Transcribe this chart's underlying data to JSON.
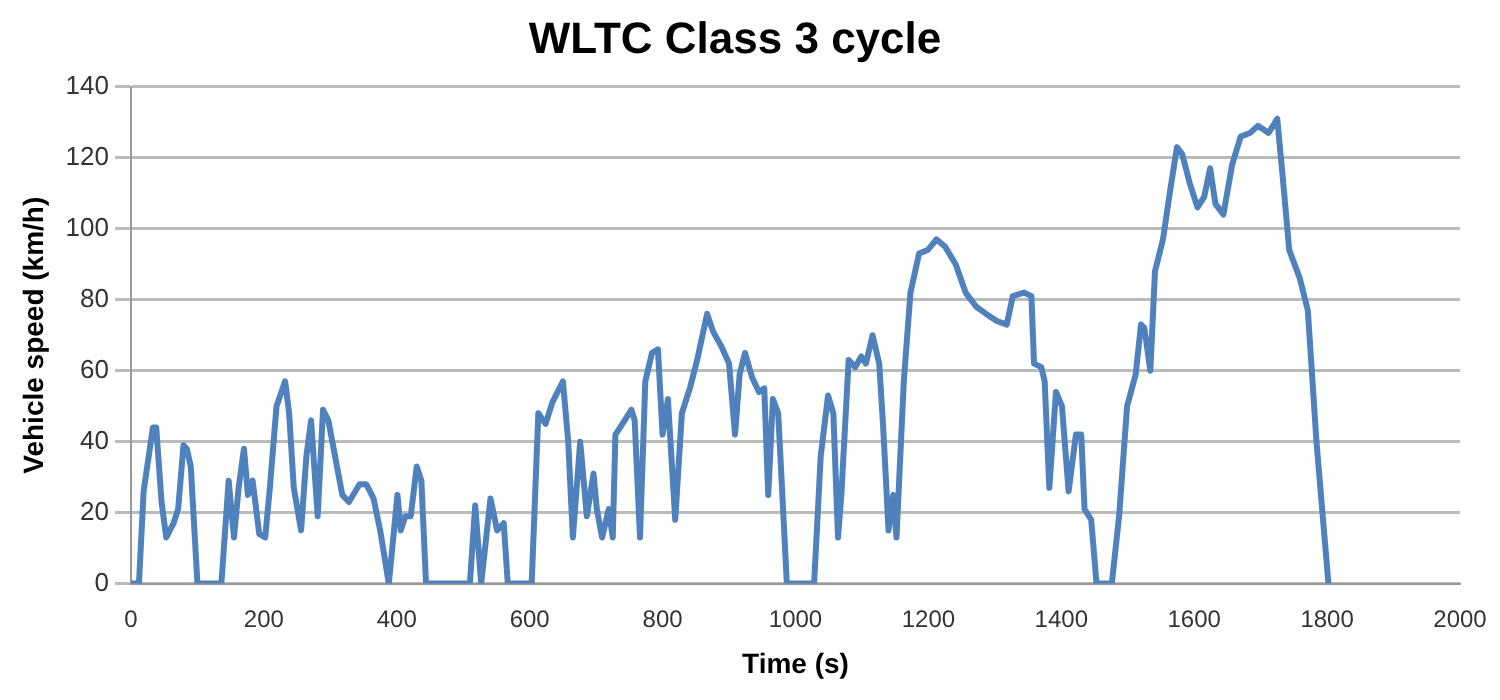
{
  "chart_data": {
    "type": "line",
    "title": "WLTC Class 3 cycle",
    "xlabel": "Time (s)",
    "ylabel": "Vehicle speed (km/h)",
    "x": [
      0,
      12,
      19,
      33,
      38,
      46,
      53,
      64,
      71,
      79,
      84,
      90,
      100,
      136,
      147,
      155,
      162,
      170,
      176,
      183,
      193,
      202,
      209,
      219,
      232,
      238,
      245,
      256,
      264,
      271,
      281,
      289,
      297,
      307,
      318,
      328,
      344,
      354,
      365,
      375,
      388,
      401,
      406,
      413,
      421,
      430,
      437,
      444,
      510,
      518,
      527,
      541,
      551,
      561,
      567,
      603,
      613,
      624,
      634,
      650,
      658,
      665,
      676,
      686,
      696,
      701,
      709,
      719,
      725,
      729,
      743,
      753,
      758,
      766,
      774,
      784,
      793,
      800,
      808,
      819,
      829,
      841,
      852,
      867,
      876,
      888,
      900,
      909,
      916,
      924,
      935,
      945,
      953,
      959,
      966,
      974,
      987,
      1028,
      1038,
      1049,
      1057,
      1064,
      1069,
      1080,
      1090,
      1099,
      1106,
      1116,
      1126,
      1132,
      1140,
      1147,
      1152,
      1163,
      1173,
      1186,
      1199,
      1212,
      1225,
      1241,
      1256,
      1272,
      1287,
      1303,
      1318,
      1327,
      1344,
      1355,
      1359,
      1370,
      1375,
      1382,
      1392,
      1401,
      1411,
      1422,
      1430,
      1435,
      1445,
      1453,
      1476,
      1487,
      1499,
      1512,
      1520,
      1525,
      1534,
      1541,
      1553,
      1564,
      1574,
      1582,
      1593,
      1605,
      1615,
      1624,
      1632,
      1644,
      1657,
      1670,
      1684,
      1696,
      1712,
      1725,
      1733,
      1743,
      1759,
      1771,
      1784,
      1802
    ],
    "series": [
      {
        "color": "#4f81bd",
        "values": [
          0,
          0,
          26,
          44,
          44,
          23,
          13,
          17,
          21,
          39,
          38,
          33,
          0,
          0,
          29,
          13,
          27,
          38,
          25,
          29,
          14,
          13,
          27,
          50,
          57,
          48,
          27,
          15,
          36,
          46,
          19,
          49,
          46,
          36,
          25,
          23,
          28,
          28,
          24,
          15,
          0,
          25,
          15,
          19,
          19,
          33,
          29,
          0,
          0,
          22,
          0,
          24,
          15,
          17,
          0,
          0,
          48,
          45,
          51,
          57,
          40,
          13,
          40,
          19,
          31,
          21,
          13,
          21,
          13,
          42,
          46,
          49,
          46,
          13,
          57,
          65,
          66,
          42,
          52,
          18,
          48,
          55,
          63,
          76,
          71,
          67,
          62,
          42,
          59,
          65,
          58,
          54,
          55,
          25,
          52,
          48,
          0,
          0,
          36,
          53,
          48,
          13,
          25,
          63,
          61,
          64,
          62,
          70,
          62,
          44,
          15,
          25,
          13,
          57,
          82,
          93,
          94,
          97,
          95,
          90,
          82,
          78,
          76,
          74,
          73,
          81,
          82,
          81,
          62,
          61,
          57,
          27,
          54,
          50,
          26,
          42,
          42,
          21,
          18,
          0,
          0,
          19,
          50,
          59,
          73,
          72,
          60,
          88,
          97,
          111,
          123,
          121,
          113,
          106,
          109,
          117,
          107,
          104,
          118,
          126,
          127,
          129,
          127,
          131,
          115,
          94,
          86,
          77,
          40,
          0
        ]
      }
    ],
    "xlim": [
      0,
      2000
    ],
    "xticks": [
      0,
      200,
      400,
      600,
      800,
      1000,
      1200,
      1400,
      1600,
      1800,
      2000
    ],
    "ylim": [
      0,
      140
    ],
    "yticks": [
      0,
      20,
      40,
      60,
      80,
      100,
      120,
      140
    ],
    "grid": "y",
    "legend": false,
    "marker": "none",
    "line_style": "solid"
  }
}
